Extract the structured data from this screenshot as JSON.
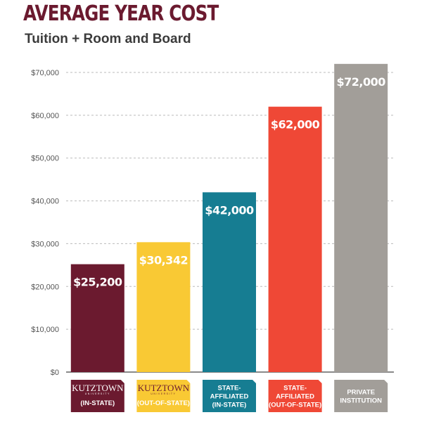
{
  "header": {
    "title": "AVERAGE YEAR COST",
    "subtitle": "Tuition + Room and Board"
  },
  "colors": {
    "title": "#6b1a2f",
    "grid": "#bbbbbb",
    "axis": "#444444"
  },
  "logo": {
    "name": "KUTZTOWN",
    "sub": "UNIVERSITY"
  },
  "chart_data": {
    "type": "bar",
    "title": "AVERAGE YEAR COST",
    "subtitle": "Tuition + Room and Board",
    "xlabel": "",
    "ylabel": "",
    "ylim": [
      0,
      70000
    ],
    "yticks": [
      "$0",
      "$10,000",
      "$20,000",
      "$30,000",
      "$40,000",
      "$50,000",
      "$60,000",
      "$70,000"
    ],
    "grid": true,
    "legend": "none",
    "categories": [
      "(IN-STATE)",
      "(OUT-OF-STATE)",
      "STATE-AFFILIATED (IN-STATE)",
      "STATE-AFFILIATED (OUT-OF-STATE)",
      "PRIVATE INSTITUTION"
    ],
    "values": [
      25200,
      30342,
      42000,
      62000,
      72000
    ],
    "value_labels": [
      "$25,200",
      "$30,342",
      "$42,000",
      "$62,000",
      "$72,000"
    ],
    "bar_colors": [
      "#6b1a2f",
      "#f9c934",
      "#167d92",
      "#ef4836",
      "#a29e99"
    ],
    "category_lines": [
      [
        "(IN-STATE)"
      ],
      [
        "(OUT-OF-STATE)"
      ],
      [
        "STATE-",
        "AFFILIATED",
        "(IN-STATE)"
      ],
      [
        "STATE-",
        "AFFILIATED",
        "(OUT-OF-STATE)"
      ],
      [
        "PRIVATE",
        "INSTITUTION"
      ]
    ],
    "logo_on_category": [
      true,
      true,
      false,
      false,
      false
    ],
    "category_text_colors": [
      "#ffffff",
      "#6b1a2f",
      "#ffffff",
      "#ffffff",
      "#ffffff"
    ]
  }
}
